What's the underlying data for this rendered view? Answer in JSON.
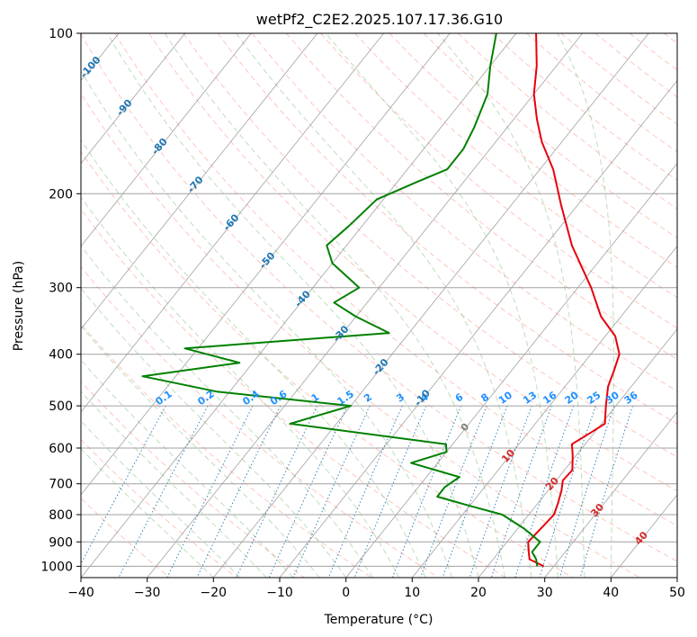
{
  "chart_data": {
    "type": "line",
    "title": "wetPf2_C2E2.2025.107.17.36.G10",
    "xlabel": "Temperature (°C)",
    "ylabel": "Pressure (hPa)",
    "xlim": [
      -40,
      50
    ],
    "ylim": [
      1050,
      100
    ],
    "y_scale": "log",
    "x_ticks": [
      -40,
      -30,
      -20,
      -10,
      0,
      10,
      20,
      30,
      40,
      50
    ],
    "y_ticks": [
      100,
      200,
      300,
      400,
      500,
      600,
      700,
      800,
      900,
      1000
    ],
    "grid": true,
    "series": [
      {
        "color": "#e8000b",
        "points": [
          [
            28.5,
            1000
          ],
          [
            25.5,
            970
          ],
          [
            24.5,
            940
          ],
          [
            23.2,
            900
          ],
          [
            23.5,
            850
          ],
          [
            23.8,
            800
          ],
          [
            23,
            760
          ],
          [
            22,
            720
          ],
          [
            21,
            690
          ],
          [
            21.2,
            660
          ],
          [
            19.5,
            620
          ],
          [
            18,
            590
          ],
          [
            19.5,
            560
          ],
          [
            20.5,
            540
          ],
          [
            18.5,
            500
          ],
          [
            16.5,
            460
          ],
          [
            15.5,
            430
          ],
          [
            14.3,
            400
          ],
          [
            11.5,
            370
          ],
          [
            7,
            340
          ],
          [
            2,
            300
          ],
          [
            -6,
            250
          ],
          [
            -12.5,
            210
          ],
          [
            -18,
            180
          ],
          [
            -23,
            160
          ],
          [
            -26.5,
            145
          ],
          [
            -30,
            130
          ],
          [
            -33,
            115
          ],
          [
            -37,
            100
          ]
        ]
      },
      {
        "color": "#008000",
        "points": [
          [
            27.5,
            1000
          ],
          [
            26.5,
            970
          ],
          [
            25,
            940
          ],
          [
            25,
            900
          ],
          [
            21,
            850
          ],
          [
            16,
            800
          ],
          [
            10,
            770
          ],
          [
            4,
            740
          ],
          [
            4,
            710
          ],
          [
            5,
            680
          ],
          [
            -4,
            640
          ],
          [
            0,
            610
          ],
          [
            -1,
            590
          ],
          [
            -27,
            540
          ],
          [
            -20,
            500
          ],
          [
            -42,
            470
          ],
          [
            -55,
            440
          ],
          [
            -42,
            415
          ],
          [
            -52,
            390
          ],
          [
            -23,
            365
          ],
          [
            -30,
            340
          ],
          [
            -35,
            320
          ],
          [
            -33,
            300
          ],
          [
            -40,
            270
          ],
          [
            -43,
            250
          ],
          [
            -42,
            230
          ],
          [
            -41,
            205
          ],
          [
            -37,
            190
          ],
          [
            -34,
            180
          ],
          [
            -34,
            165
          ],
          [
            -35,
            150
          ],
          [
            -37,
            130
          ],
          [
            -40,
            115
          ],
          [
            -43,
            100
          ]
        ]
      }
    ],
    "isotherm_labels": [
      "-100",
      "-90",
      "-80",
      "-70",
      "-60",
      "-50",
      "-40",
      "-30",
      "-20",
      "-10",
      "0",
      "10",
      "20",
      "30",
      "40"
    ],
    "mixing_ratio_labels": [
      "0.1",
      "0.2",
      "0.4",
      "0.6",
      "1",
      "1.5",
      "2",
      "3",
      "4",
      "6",
      "8",
      "10",
      "13",
      "16",
      "20",
      "25",
      "30",
      "36"
    ],
    "colors": {
      "isotherm_cold": "#1f77b4",
      "isotherm_zero": "#808080",
      "isotherm_warm": "#d62728",
      "mixing_ratio_label": "#1e90ff",
      "mixing_ratio_line": "#1f77b4",
      "dry_adiabat": "#fa8072",
      "moist_adiabat": "#90c890",
      "temperature": "#e8000b",
      "dewpoint": "#008000"
    }
  }
}
